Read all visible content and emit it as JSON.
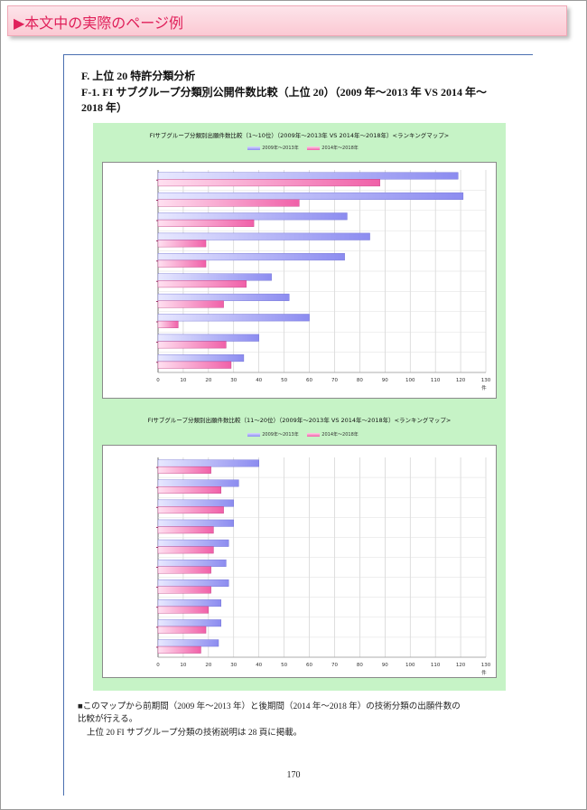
{
  "banner": {
    "title": "▶本文中の実際のページ例"
  },
  "heading": {
    "section": "F.  上位 20 特許分類分析",
    "subsection_line1": "F-1.  FI サブグループ分類別公開件数比較（上位 20）（2009 年〜2013 年  VS 2014 年〜",
    "subsection_line2": "2018 年）"
  },
  "colors": {
    "series1": "#8c8cf0",
    "series2": "#f060a8",
    "chart_bg": "#c6f3c6",
    "banner_text": "#e0205a"
  },
  "chart_data": [
    {
      "type": "bar",
      "orientation": "horizontal",
      "title": "FIサブグループ分類別出願件数比較（1〜10位）（2009年〜2013年 VS 2014年〜2018年）<ランキングマップ>",
      "legend": [
        "2009年〜2013年",
        "2014年〜2018年"
      ],
      "xunit": "件",
      "xlim": [
        0,
        130
      ],
      "xticks": [
        "0",
        "10",
        "20",
        "30",
        "40",
        "50",
        "60",
        "70",
        "80",
        "90",
        "100",
        "110",
        "120",
        "130"
      ],
      "categories": [
        "",
        "",
        "",
        "",
        "",
        "",
        "",
        "",
        "",
        ""
      ],
      "series": [
        {
          "name": "2009年〜2013年",
          "values": [
            119,
            121,
            75,
            84,
            74,
            45,
            52,
            60,
            40,
            34
          ]
        },
        {
          "name": "2014年〜2018年",
          "values": [
            88,
            56,
            38,
            19,
            19,
            35,
            26,
            8,
            27,
            29
          ]
        }
      ],
      "grid": true
    },
    {
      "type": "bar",
      "orientation": "horizontal",
      "title": "FIサブグループ分類別出願件数比較（11〜20位）（2009年〜2013年 VS 2014年〜2018年）<ランキングマップ>",
      "legend": [
        "2009年〜2013年",
        "2014年〜2018年"
      ],
      "xunit": "件",
      "xlim": [
        0,
        130
      ],
      "xticks": [
        "0",
        "10",
        "20",
        "30",
        "40",
        "50",
        "60",
        "70",
        "80",
        "90",
        "100",
        "110",
        "120",
        "130"
      ],
      "categories": [
        "",
        "",
        "",
        "",
        "",
        "",
        "",
        "",
        "",
        ""
      ],
      "series": [
        {
          "name": "2009年〜2013年",
          "values": [
            40,
            32,
            30,
            30,
            28,
            27,
            28,
            25,
            25,
            24
          ]
        },
        {
          "name": "2014年〜2018年",
          "values": [
            21,
            25,
            26,
            22,
            22,
            21,
            21,
            20,
            19,
            17
          ]
        }
      ],
      "grid": true
    }
  ],
  "note": {
    "line1": "■このマップから前期間（2009 年〜2013 年）と後期間（2014 年〜2018 年）の技術分類の出願件数の",
    "line2": "比較が行える。",
    "line3": "上位 20 FI サブグループ分類の技術説明は 28 頁に掲載。"
  },
  "page_number": "170"
}
